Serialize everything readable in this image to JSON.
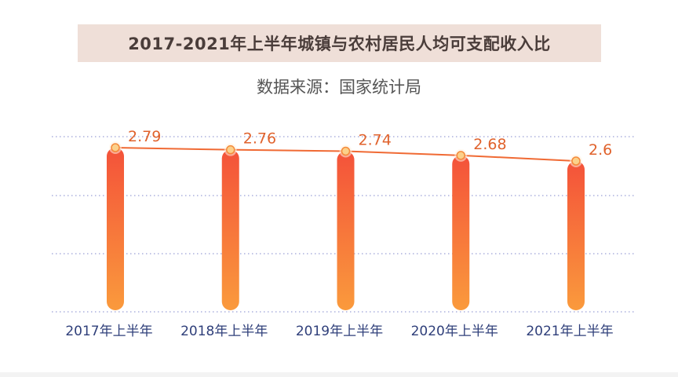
{
  "title": "2017-2021年上半年城镇与农村居民人均可支配收入比",
  "subtitle": "数据来源：国家统计局",
  "colors": {
    "bar_top": "#f4523a",
    "bar_bottom": "#fa9a3c",
    "line": "#f06a34",
    "marker_fill": "#fbd08a",
    "marker_stroke": "#f58a3a",
    "gridline": "#9aa0d6",
    "value_label": "#e0622c",
    "tick_label": "#2f3f7a",
    "title_bg": "#efdfd8"
  },
  "chart_data": {
    "type": "bar",
    "title": "2017-2021年上半年城镇与农村居民人均可支配收入比",
    "categories": [
      "2017年上半年",
      "2018年上半年",
      "2019年上半年",
      "2020年上半年",
      "2021年上半年"
    ],
    "series": [
      {
        "values": [
          2.79,
          2.76,
          2.74,
          2.68,
          2.6
        ]
      }
    ],
    "data_labels": [
      "2.79",
      "2.76",
      "2.74",
      "2.68",
      "2.6"
    ],
    "overlay_line": true,
    "grid": "horizontal dotted",
    "legend": "none"
  }
}
